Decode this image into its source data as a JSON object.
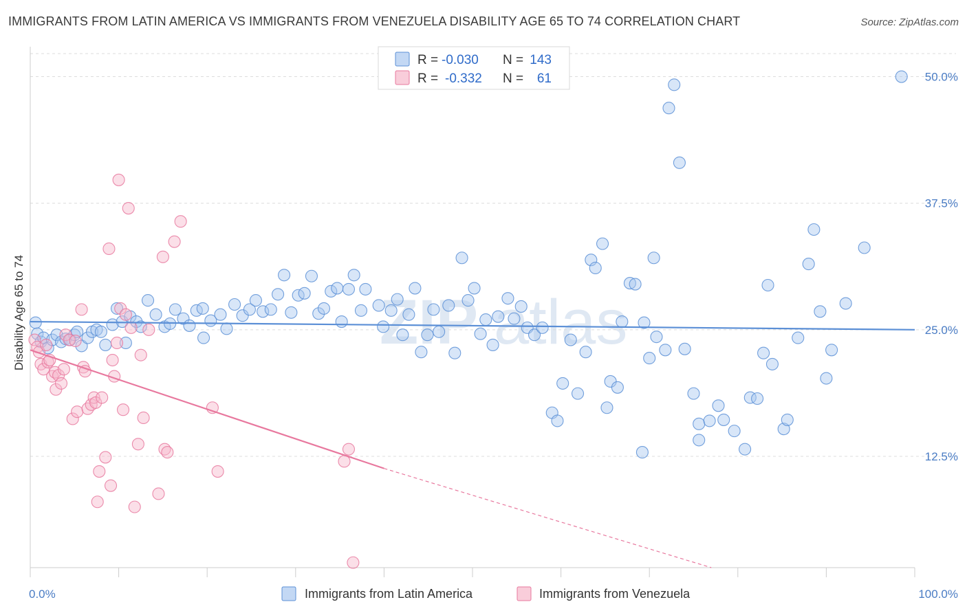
{
  "title": "IMMIGRANTS FROM LATIN AMERICA VS IMMIGRANTS FROM VENEZUELA DISABILITY AGE 65 TO 74 CORRELATION CHART",
  "source": "Source: ZipAtlas.com",
  "watermark": {
    "part1": "ZIP",
    "part2": "atlas"
  },
  "legend": {
    "rows": [
      {
        "r_label": "R =",
        "r_value": "-0.030",
        "n_label": "N =",
        "n_value": "143",
        "color": "#a9c8f0",
        "stroke": "#5b8fd6"
      },
      {
        "r_label": "R =",
        "r_value": "-0.332",
        "n_label": "N =",
        "n_value": "61",
        "color": "#f6b8cb",
        "stroke": "#e8789e"
      }
    ]
  },
  "bottom_legend": [
    {
      "label": "Immigrants from Latin America",
      "color": "#a9c8f0",
      "stroke": "#5b8fd6"
    },
    {
      "label": "Immigrants from Venezuela",
      "color": "#f6b8cb",
      "stroke": "#e8789e"
    }
  ],
  "chart_data": {
    "type": "scatter",
    "title": "IMMIGRANTS FROM LATIN AMERICA VS IMMIGRANTS FROM VENEZUELA DISABILITY AGE 65 TO 74 CORRELATION CHART",
    "xlabel": "",
    "ylabel": "Disability Age 65 to 74",
    "xlim": [
      0,
      100
    ],
    "ylim": [
      1.5,
      53.5
    ],
    "x_tick_labels": [
      {
        "value": 0,
        "label": "0.0%"
      },
      {
        "value": 100,
        "label": "100.0%"
      }
    ],
    "y_ticks": [
      {
        "value": 12.5,
        "label": "12.5%"
      },
      {
        "value": 25.0,
        "label": "25.0%"
      },
      {
        "value": 37.5,
        "label": "37.5%"
      },
      {
        "value": 50.0,
        "label": "50.0%"
      }
    ],
    "grid": true,
    "series": [
      {
        "name": "Immigrants from Latin America",
        "color": "#5b8fd6",
        "fill": "#a9c8f0",
        "trend": {
          "x0": 0,
          "y0": 25.8,
          "x1": 100,
          "y1": 25.0
        },
        "points": [
          [
            0.6,
            25.7
          ],
          [
            0.8,
            24.6
          ],
          [
            1.2,
            23.8
          ],
          [
            1.5,
            24.2
          ],
          [
            2.0,
            23.2
          ],
          [
            2.5,
            24.0
          ],
          [
            3.0,
            24.5
          ],
          [
            3.5,
            23.8
          ],
          [
            4.0,
            24.1
          ],
          [
            4.5,
            24.0
          ],
          [
            5.0,
            24.5
          ],
          [
            5.3,
            24.8
          ],
          [
            5.8,
            23.4
          ],
          [
            6.5,
            24.2
          ],
          [
            7.0,
            24.8
          ],
          [
            7.5,
            25.0
          ],
          [
            8.0,
            24.8
          ],
          [
            8.5,
            23.5
          ],
          [
            9.3,
            25.5
          ],
          [
            9.8,
            27.1
          ],
          [
            10.4,
            25.8
          ],
          [
            10.8,
            23.7
          ],
          [
            11.3,
            26.3
          ],
          [
            12.0,
            25.8
          ],
          [
            12.5,
            25.3
          ],
          [
            13.3,
            27.9
          ],
          [
            14.2,
            26.5
          ],
          [
            15.2,
            25.3
          ],
          [
            15.8,
            25.6
          ],
          [
            16.4,
            27.0
          ],
          [
            17.3,
            26.1
          ],
          [
            18.0,
            25.4
          ],
          [
            18.8,
            26.9
          ],
          [
            19.6,
            24.2
          ],
          [
            19.5,
            27.1
          ],
          [
            20.4,
            25.9
          ],
          [
            21.5,
            26.5
          ],
          [
            22.2,
            25.1
          ],
          [
            23.1,
            27.5
          ],
          [
            24.0,
            26.4
          ],
          [
            24.8,
            27.0
          ],
          [
            25.5,
            27.9
          ],
          [
            26.3,
            26.8
          ],
          [
            27.2,
            27.0
          ],
          [
            28.0,
            28.5
          ],
          [
            28.7,
            30.4
          ],
          [
            29.5,
            26.7
          ],
          [
            30.3,
            28.4
          ],
          [
            31.0,
            28.6
          ],
          [
            31.8,
            30.3
          ],
          [
            32.6,
            26.6
          ],
          [
            33.2,
            27.1
          ],
          [
            34.0,
            28.8
          ],
          [
            34.7,
            29.1
          ],
          [
            35.2,
            25.8
          ],
          [
            36.0,
            29.0
          ],
          [
            36.6,
            30.4
          ],
          [
            37.4,
            26.9
          ],
          [
            37.9,
            29.0
          ],
          [
            39.4,
            27.4
          ],
          [
            39.9,
            25.3
          ],
          [
            40.8,
            26.9
          ],
          [
            41.5,
            28.0
          ],
          [
            42.1,
            24.5
          ],
          [
            42.8,
            26.5
          ],
          [
            43.5,
            29.1
          ],
          [
            44.2,
            22.8
          ],
          [
            44.9,
            24.5
          ],
          [
            45.6,
            27.0
          ],
          [
            46.2,
            24.8
          ],
          [
            47.3,
            27.4
          ],
          [
            48.0,
            22.7
          ],
          [
            48.8,
            32.1
          ],
          [
            49.5,
            27.9
          ],
          [
            50.2,
            29.1
          ],
          [
            50.9,
            24.6
          ],
          [
            51.5,
            26.0
          ],
          [
            52.3,
            23.5
          ],
          [
            52.9,
            26.3
          ],
          [
            54.0,
            28.1
          ],
          [
            54.7,
            26.1
          ],
          [
            55.5,
            27.3
          ],
          [
            56.2,
            25.2
          ],
          [
            57.0,
            24.5
          ],
          [
            57.9,
            25.2
          ],
          [
            59.0,
            16.8
          ],
          [
            59.6,
            16.0
          ],
          [
            60.2,
            19.7
          ],
          [
            61.1,
            24.0
          ],
          [
            61.9,
            18.7
          ],
          [
            62.8,
            22.8
          ],
          [
            63.4,
            31.9
          ],
          [
            63.9,
            31.1
          ],
          [
            64.7,
            33.5
          ],
          [
            65.2,
            17.3
          ],
          [
            65.6,
            19.9
          ],
          [
            66.4,
            19.3
          ],
          [
            66.9,
            25.8
          ],
          [
            67.8,
            29.6
          ],
          [
            68.4,
            29.5
          ],
          [
            69.4,
            25.7
          ],
          [
            69.2,
            12.9
          ],
          [
            70.0,
            22.2
          ],
          [
            70.5,
            32.1
          ],
          [
            70.8,
            24.3
          ],
          [
            71.8,
            23.0
          ],
          [
            72.2,
            46.9
          ],
          [
            72.8,
            49.2
          ],
          [
            73.4,
            41.5
          ],
          [
            74.0,
            23.1
          ],
          [
            75.0,
            18.7
          ],
          [
            75.6,
            15.7
          ],
          [
            75.6,
            14.1
          ],
          [
            76.8,
            16.0
          ],
          [
            77.8,
            17.5
          ],
          [
            78.4,
            16.1
          ],
          [
            79.6,
            15.0
          ],
          [
            80.8,
            13.2
          ],
          [
            81.4,
            18.3
          ],
          [
            82.2,
            18.2
          ],
          [
            82.9,
            22.7
          ],
          [
            83.4,
            29.4
          ],
          [
            83.9,
            21.6
          ],
          [
            85.2,
            15.2
          ],
          [
            85.6,
            16.1
          ],
          [
            86.8,
            24.2
          ],
          [
            88.0,
            31.5
          ],
          [
            88.6,
            34.9
          ],
          [
            89.3,
            26.8
          ],
          [
            90.0,
            20.2
          ],
          [
            90.6,
            23.0
          ],
          [
            92.2,
            27.6
          ],
          [
            94.3,
            33.1
          ],
          [
            98.5,
            50.0
          ]
        ]
      },
      {
        "name": "Immigrants from Venezuela",
        "color": "#e8789e",
        "fill": "#f6b8cb",
        "trend": {
          "x0": 0,
          "y0": 23.0,
          "x1": 40,
          "y1": 11.3
        },
        "trend_dashed_to": {
          "x": 77,
          "y": 1.5
        },
        "points": [
          [
            0.5,
            24.0
          ],
          [
            0.8,
            23.3
          ],
          [
            1.0,
            22.8
          ],
          [
            1.2,
            21.6
          ],
          [
            1.5,
            21.1
          ],
          [
            1.8,
            23.5
          ],
          [
            2.0,
            21.8
          ],
          [
            2.2,
            22.0
          ],
          [
            2.5,
            20.4
          ],
          [
            2.8,
            20.8
          ],
          [
            2.9,
            19.1
          ],
          [
            3.2,
            20.5
          ],
          [
            3.5,
            19.7
          ],
          [
            3.8,
            21.1
          ],
          [
            4.0,
            24.5
          ],
          [
            4.4,
            24.0
          ],
          [
            4.8,
            16.2
          ],
          [
            5.1,
            23.9
          ],
          [
            5.3,
            16.9
          ],
          [
            5.8,
            27.0
          ],
          [
            6.0,
            21.3
          ],
          [
            6.2,
            20.9
          ],
          [
            6.5,
            17.2
          ],
          [
            6.9,
            17.6
          ],
          [
            7.2,
            18.3
          ],
          [
            7.4,
            17.8
          ],
          [
            7.6,
            8.0
          ],
          [
            7.8,
            11.0
          ],
          [
            8.1,
            18.3
          ],
          [
            8.5,
            12.4
          ],
          [
            8.9,
            33.0
          ],
          [
            9.1,
            9.6
          ],
          [
            9.3,
            22.0
          ],
          [
            9.5,
            20.4
          ],
          [
            9.8,
            23.7
          ],
          [
            10.0,
            39.8
          ],
          [
            10.2,
            27.1
          ],
          [
            10.5,
            17.1
          ],
          [
            10.8,
            26.5
          ],
          [
            11.1,
            37.0
          ],
          [
            11.4,
            25.2
          ],
          [
            11.8,
            7.5
          ],
          [
            12.2,
            13.7
          ],
          [
            12.5,
            22.5
          ],
          [
            12.8,
            16.3
          ],
          [
            13.4,
            25.0
          ],
          [
            14.5,
            8.8
          ],
          [
            15.0,
            32.2
          ],
          [
            15.2,
            13.2
          ],
          [
            15.5,
            12.9
          ],
          [
            16.3,
            33.7
          ],
          [
            17.0,
            35.7
          ],
          [
            20.6,
            17.3
          ],
          [
            21.2,
            11.0
          ],
          [
            35.5,
            12.0
          ],
          [
            36.0,
            13.2
          ],
          [
            36.5,
            2.0
          ]
        ]
      }
    ]
  }
}
